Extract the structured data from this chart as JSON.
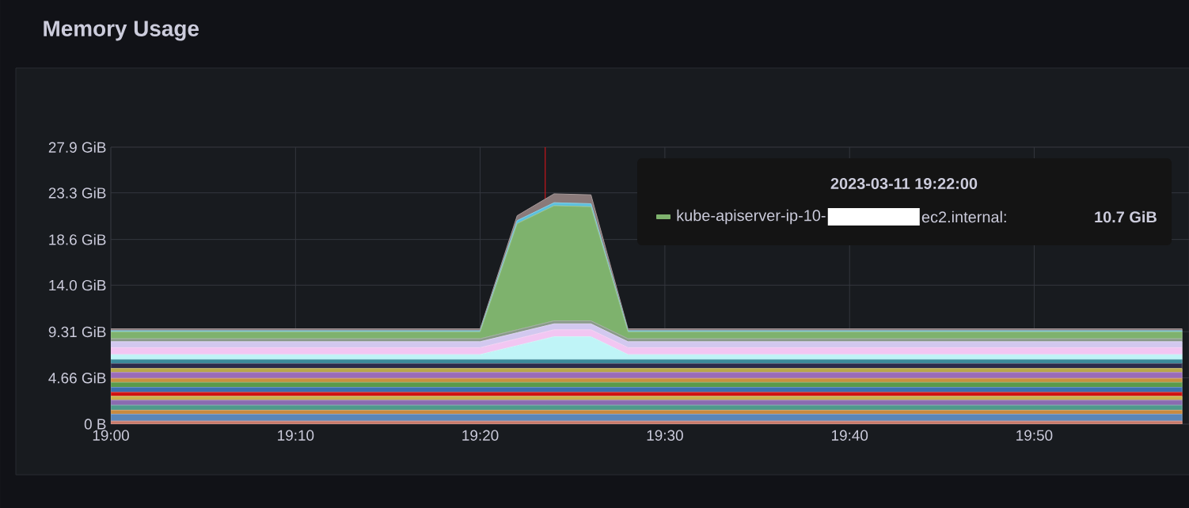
{
  "chart_data": {
    "type": "area",
    "title": "Memory Usage",
    "stacked": true,
    "grid": true,
    "legend": "top right",
    "legend_title": "2023-03-11 19:22:00",
    "annotations": [
      "ec2.internal:",
      "10.7 GiB"
    ],
    "x": [
      19.0,
      19.3333,
      19.3667,
      19.4,
      19.4333,
      19.4667,
      19.9667
    ],
    "xlim": [
      19.0,
      19.973
    ],
    "xticks": [
      {
        "value": 19.0,
        "label": "19:00"
      },
      {
        "value": 19.1667,
        "label": "19:10"
      },
      {
        "value": 19.3333,
        "label": "19:20"
      },
      {
        "value": 19.5,
        "label": "19:30"
      },
      {
        "value": 19.6667,
        "label": "19:40"
      },
      {
        "value": 19.8333,
        "label": "19:50"
      }
    ],
    "ylim": [
      0,
      27.9
    ],
    "yticks": [
      {
        "value": 0,
        "label": "0 B"
      },
      {
        "value": 4.66,
        "label": "4.66 GiB"
      },
      {
        "value": 9.31,
        "label": "9.31 GiB"
      },
      {
        "value": 14.0,
        "label": "14.0 GiB"
      },
      {
        "value": 18.6,
        "label": "18.6 GiB"
      },
      {
        "value": 23.3,
        "label": "23.3 GiB"
      },
      {
        "value": 27.9,
        "label": "27.9 GiB"
      }
    ],
    "ref_lines": [
      {
        "axis": "x",
        "value": 19.392,
        "color": "#c4161c"
      }
    ],
    "series": [
      {
        "color": "#c97a6a",
        "values": [
          0.3,
          0.3,
          0.3,
          0.3,
          0.3,
          0.3,
          0.3
        ]
      },
      {
        "color": "#5a86b8",
        "values": [
          0.7,
          0.7,
          0.7,
          0.7,
          0.7,
          0.7,
          0.7
        ]
      },
      {
        "color": "#c98a3e",
        "values": [
          0.4,
          0.4,
          0.4,
          0.4,
          0.4,
          0.4,
          0.4
        ]
      },
      {
        "color": "#4e9a8c",
        "values": [
          0.5,
          0.5,
          0.5,
          0.5,
          0.5,
          0.5,
          0.5
        ]
      },
      {
        "color": "#8a6bb0",
        "values": [
          0.5,
          0.5,
          0.5,
          0.5,
          0.5,
          0.5,
          0.5
        ]
      },
      {
        "color": "#c9b04a",
        "values": [
          0.4,
          0.4,
          0.4,
          0.4,
          0.4,
          0.4,
          0.4
        ]
      },
      {
        "color": "#d01010",
        "values": [
          0.4,
          0.4,
          0.4,
          0.4,
          0.4,
          0.4,
          0.4
        ]
      },
      {
        "color": "#3c6fb0",
        "values": [
          0.5,
          0.5,
          0.5,
          0.5,
          0.5,
          0.5,
          0.5
        ]
      },
      {
        "color": "#5a9a4a",
        "values": [
          0.5,
          0.5,
          0.5,
          0.5,
          0.5,
          0.5,
          0.5
        ]
      },
      {
        "color": "#c9903e",
        "values": [
          0.4,
          0.4,
          0.4,
          0.4,
          0.4,
          0.4,
          0.4
        ]
      },
      {
        "color": "#9a6bb8",
        "values": [
          0.6,
          0.6,
          0.6,
          0.6,
          0.6,
          0.6,
          0.6
        ]
      },
      {
        "color": "#b8a84a",
        "values": [
          0.4,
          0.4,
          0.4,
          0.4,
          0.4,
          0.4,
          0.4
        ]
      },
      {
        "color": "#2a2a4a",
        "values": [
          0.5,
          0.5,
          0.5,
          0.5,
          0.5,
          0.5,
          0.5
        ]
      },
      {
        "color": "#3a8a9a",
        "values": [
          0.4,
          0.4,
          0.4,
          0.4,
          0.4,
          0.4,
          0.4
        ]
      },
      {
        "color": "#bff4f7",
        "values": [
          0.5,
          0.5,
          1.4,
          2.3,
          2.3,
          0.5,
          0.5
        ]
      },
      {
        "color": "#f2c6f2",
        "values": [
          0.7,
          0.7,
          0.7,
          0.7,
          0.7,
          0.7,
          0.7
        ]
      },
      {
        "color": "#d2c8ef",
        "values": [
          0.6,
          0.6,
          0.6,
          0.6,
          0.6,
          0.6,
          0.6
        ]
      },
      {
        "color": "#8a9a8a",
        "values": [
          0.3,
          0.3,
          0.3,
          0.3,
          0.3,
          0.3,
          0.3
        ]
      },
      {
        "name": "kube-apiserver-ip-10-",
        "color": "#7eb26d",
        "values": [
          0.7,
          0.7,
          10.7,
          11.6,
          11.5,
          0.7,
          0.7
        ]
      },
      {
        "color": "#5bc0de",
        "values": [
          0.1,
          0.1,
          0.3,
          0.3,
          0.3,
          0.1,
          0.1
        ]
      },
      {
        "color": "#8a7a7a",
        "values": [
          0.2,
          0.2,
          0.5,
          0.9,
          0.9,
          0.2,
          0.2
        ]
      }
    ]
  }
}
